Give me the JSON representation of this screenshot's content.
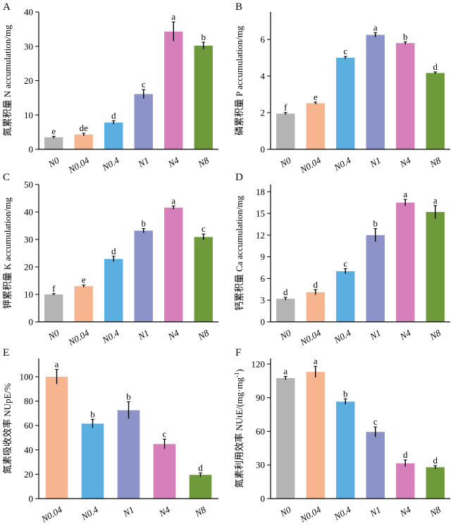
{
  "figure_title": "",
  "chart_data": [
    {
      "panel": "A",
      "type": "bar",
      "ylabel": "氮累积量 N accumulation/mg",
      "categories": [
        "N0",
        "N0.04",
        "N0.4",
        "N1",
        "N4",
        "N8"
      ],
      "values": [
        3.5,
        4.3,
        7.8,
        16.1,
        34.3,
        30.2
      ],
      "errors": [
        0.3,
        0.4,
        0.5,
        1.3,
        2.8,
        1.0
      ],
      "letters": [
        "e",
        "de",
        "d",
        "c",
        "a",
        "b"
      ],
      "colors": [
        "#b4b4b4",
        "#f6b58f",
        "#5aaee0",
        "#8b93c9",
        "#d67fba",
        "#6e9a3b"
      ],
      "ylim": [
        0,
        40
      ],
      "yticks": [
        0,
        10,
        20,
        30,
        40
      ]
    },
    {
      "panel": "B",
      "type": "bar",
      "ylabel": "磷累积量 P accumulation/mg",
      "categories": [
        "N0",
        "N0.04",
        "N0.4",
        "N1",
        "N4",
        "N8"
      ],
      "values": [
        1.95,
        2.52,
        5.0,
        6.25,
        5.8,
        4.17
      ],
      "errors": [
        0.06,
        0.06,
        0.07,
        0.12,
        0.07,
        0.06
      ],
      "letters": [
        "f",
        "e",
        "c",
        "a",
        "b",
        "d"
      ],
      "colors": [
        "#b4b4b4",
        "#f6b58f",
        "#5aaee0",
        "#8b93c9",
        "#d67fba",
        "#6e9a3b"
      ],
      "ylim": [
        0,
        7.5
      ],
      "yticks": [
        0,
        2,
        4,
        6
      ]
    },
    {
      "panel": "C",
      "type": "bar",
      "ylabel": "钾累积量 K accumulation/mg",
      "categories": [
        "N0",
        "N0.04",
        "N0.4",
        "N1",
        "N4",
        "N8"
      ],
      "values": [
        10,
        13,
        22.9,
        33.2,
        41.6,
        30.9
      ],
      "errors": [
        0.3,
        0.4,
        1.0,
        0.8,
        0.6,
        1.1
      ],
      "letters": [
        "f",
        "e",
        "d",
        "b",
        "a",
        "c"
      ],
      "colors": [
        "#b4b4b4",
        "#f6b58f",
        "#5aaee0",
        "#8b93c9",
        "#d67fba",
        "#6e9a3b"
      ],
      "ylim": [
        0,
        50
      ],
      "yticks": [
        0,
        10,
        20,
        30,
        40,
        50
      ]
    },
    {
      "panel": "D",
      "type": "bar",
      "ylabel": "钙累积量 Ca accumulation/mg",
      "categories": [
        "N0",
        "N0.04",
        "N0.4",
        "N1",
        "N4",
        "N8"
      ],
      "values": [
        3.2,
        4.1,
        7.0,
        12.0,
        16.5,
        15.2
      ],
      "errors": [
        0.2,
        0.35,
        0.35,
        0.9,
        0.45,
        0.9
      ],
      "letters": [
        "d",
        "d",
        "c",
        "b",
        "a",
        "a"
      ],
      "colors": [
        "#b4b4b4",
        "#f6b58f",
        "#5aaee0",
        "#8b93c9",
        "#d67fba",
        "#6e9a3b"
      ],
      "ylim": [
        0,
        19
      ],
      "yticks": [
        0,
        3,
        6,
        9,
        12,
        15,
        18
      ]
    },
    {
      "panel": "E",
      "type": "bar",
      "ylabel": "氮素吸收效率 NUpE/%",
      "categories": [
        "N0.04",
        "N0.4",
        "N1",
        "N4",
        "N8"
      ],
      "values": [
        100,
        61.5,
        72.5,
        44.8,
        19.5
      ],
      "errors": [
        6,
        3.5,
        7,
        4,
        1.5
      ],
      "letters": [
        "a",
        "b",
        "b",
        "c",
        "d"
      ],
      "colors": [
        "#f6b58f",
        "#5aaee0",
        "#8b93c9",
        "#d67fba",
        "#6e9a3b"
      ],
      "ylim": [
        0,
        115
      ],
      "yticks": [
        0,
        20,
        40,
        60,
        80,
        100
      ]
    },
    {
      "panel": "F",
      "type": "bar",
      "ylabel": "氮素利用效率 NUtE/(mg·mg",
      "ylabel_sup": "-1",
      "ylabel_tail": ")",
      "categories": [
        "N0",
        "N0.04",
        "N0.4",
        "N1",
        "N4",
        "N8"
      ],
      "values": [
        107.5,
        113,
        86.5,
        59.5,
        31.5,
        28
      ],
      "errors": [
        1.5,
        5,
        2.5,
        4.5,
        3,
        1.5
      ],
      "letters": [
        "a",
        "a",
        "b",
        "c",
        "d",
        "d"
      ],
      "colors": [
        "#b4b4b4",
        "#f6b58f",
        "#5aaee0",
        "#8b93c9",
        "#d67fba",
        "#6e9a3b"
      ],
      "ylim": [
        0,
        125
      ],
      "yticks": [
        0,
        30,
        60,
        90,
        120
      ]
    }
  ]
}
